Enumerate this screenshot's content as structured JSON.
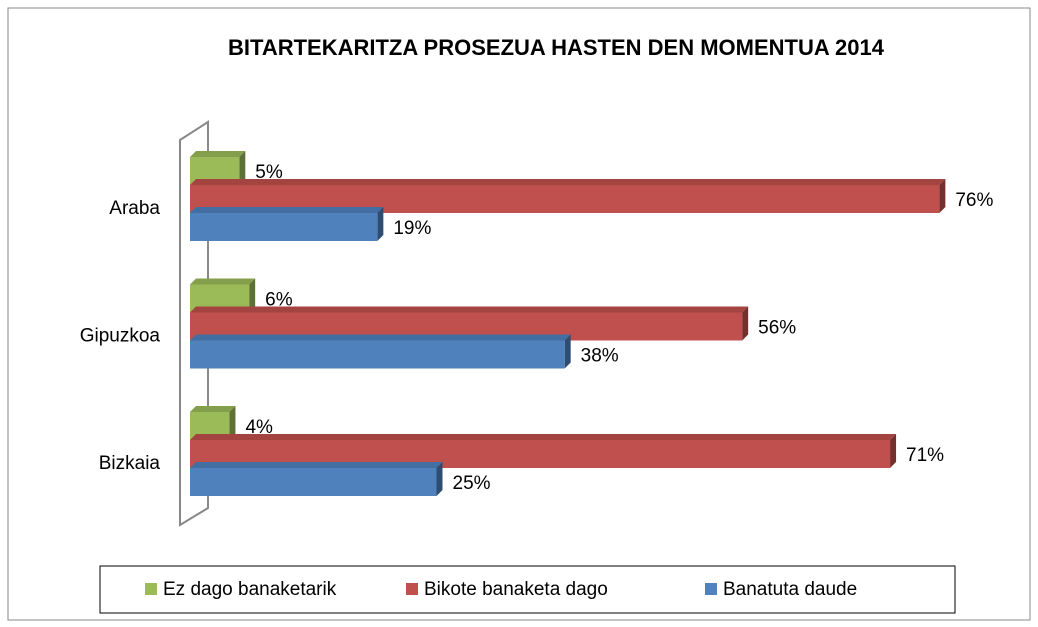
{
  "chart_data": {
    "type": "bar",
    "orientation": "horizontal",
    "title": "BITARTEKARITZA PROSEZUA HASTEN DEN MOMENTUA 2014",
    "categories": [
      "Araba",
      "Gipuzkoa",
      "Bizkaia"
    ],
    "series": [
      {
        "name": "Ez dago banaketarik",
        "color": "#9bbb59",
        "values": [
          5,
          6,
          4
        ],
        "value_labels": [
          "5%",
          "6%",
          "4%"
        ]
      },
      {
        "name": "Bikote banaketa dago",
        "color": "#c0504d",
        "values": [
          76,
          56,
          71
        ],
        "value_labels": [
          "76%",
          "56%",
          "71%"
        ]
      },
      {
        "name": "Banatuta daude",
        "color": "#4f81bd",
        "values": [
          19,
          38,
          25
        ],
        "value_labels": [
          "19%",
          "38%",
          "25%"
        ]
      }
    ],
    "legend": "bottom",
    "grid": false
  }
}
